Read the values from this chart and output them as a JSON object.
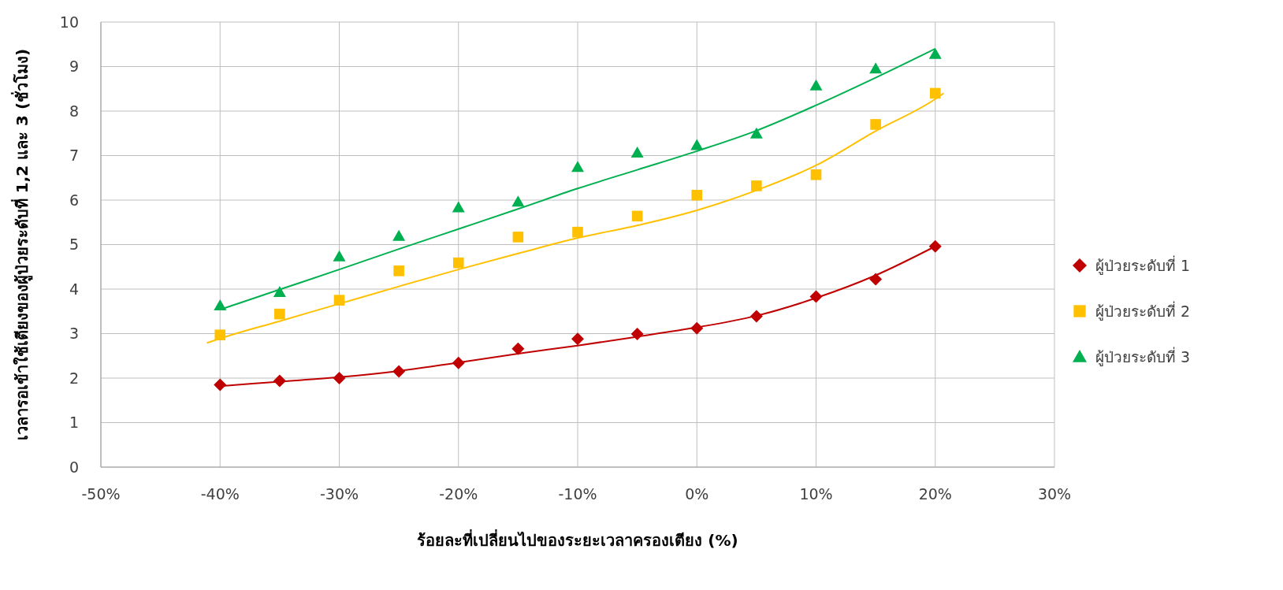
{
  "chart_data": {
    "type": "scatter",
    "xlabel": "ร้อยละที่เปลี่ยนไปของระยะเวลาครองเตียง (%)",
    "ylabel": "เวลารอเข้าใช้เตียงของผู้ป่วยระดับที่ 1,2 และ 3 (ชั่วโมง)",
    "x": [
      -40,
      -35,
      -30,
      -25,
      -20,
      -15,
      -10,
      -5,
      0,
      5,
      10,
      15,
      20
    ],
    "series": [
      {
        "name": "ผู้ป่วยระดับที่ 1",
        "color": "#c00000",
        "marker": "diamond",
        "values": [
          1.85,
          1.94,
          2.0,
          2.15,
          2.34,
          2.66,
          2.88,
          2.99,
          3.12,
          3.39,
          3.83,
          4.22,
          4.96
        ]
      },
      {
        "name": "ผู้ป่วยระดับที่ 2",
        "color": "#ffc000",
        "marker": "square",
        "values": [
          2.97,
          3.44,
          3.75,
          4.41,
          4.59,
          5.17,
          5.28,
          5.64,
          6.11,
          6.32,
          6.57,
          7.7,
          8.4
        ]
      },
      {
        "name": "ผู้ป่วยระดับที่ 3",
        "color": "#00b050",
        "marker": "triangle",
        "values": [
          3.63,
          3.93,
          4.73,
          5.19,
          5.83,
          5.96,
          6.74,
          7.06,
          7.23,
          7.49,
          8.57,
          8.95,
          9.28
        ]
      },
      {
        "type": "line",
        "color": "#c00000",
        "x": [
          -40,
          -35,
          -30,
          -25,
          -20,
          -15,
          -10,
          -5,
          0,
          5,
          10,
          15,
          20
        ],
        "values": [
          1.82,
          1.92,
          2.02,
          2.16,
          2.35,
          2.55,
          2.73,
          2.93,
          3.14,
          3.4,
          3.8,
          4.31,
          4.96
        ]
      },
      {
        "type": "line",
        "color": "#ffc000",
        "x": [
          -41.1,
          -40,
          -35,
          -30,
          -25,
          -20,
          -15,
          -10,
          -5,
          0,
          5,
          10,
          15,
          20,
          20.7
        ],
        "values": [
          2.79,
          2.89,
          3.28,
          3.67,
          4.06,
          4.44,
          4.8,
          5.15,
          5.43,
          5.77,
          6.22,
          6.78,
          7.55,
          8.27,
          8.4
        ]
      },
      {
        "type": "line",
        "color": "#00b050",
        "x": [
          -40,
          -35,
          -30,
          -25,
          -20,
          -15,
          -10,
          -5,
          0,
          5,
          10,
          15,
          20
        ],
        "values": [
          3.54,
          3.99,
          4.44,
          4.9,
          5.35,
          5.8,
          6.26,
          6.68,
          7.1,
          7.56,
          8.13,
          8.75,
          9.4
        ]
      }
    ],
    "xlim": [
      -50,
      30
    ],
    "xticks": [
      {
        "value": -50,
        "label": "-50%"
      },
      {
        "value": -40,
        "label": "-40%"
      },
      {
        "value": -30,
        "label": "-30%"
      },
      {
        "value": -20,
        "label": "-20%"
      },
      {
        "value": -10,
        "label": "-10%"
      },
      {
        "value": 0,
        "label": "0%"
      },
      {
        "value": 10,
        "label": "10%"
      },
      {
        "value": 20,
        "label": "20%"
      },
      {
        "value": 30,
        "label": "30%"
      }
    ],
    "ylim": [
      0,
      10
    ],
    "yticks": [
      0,
      1,
      2,
      3,
      4,
      5,
      6,
      7,
      8,
      9,
      10
    ],
    "grid": true,
    "legend": "right"
  }
}
